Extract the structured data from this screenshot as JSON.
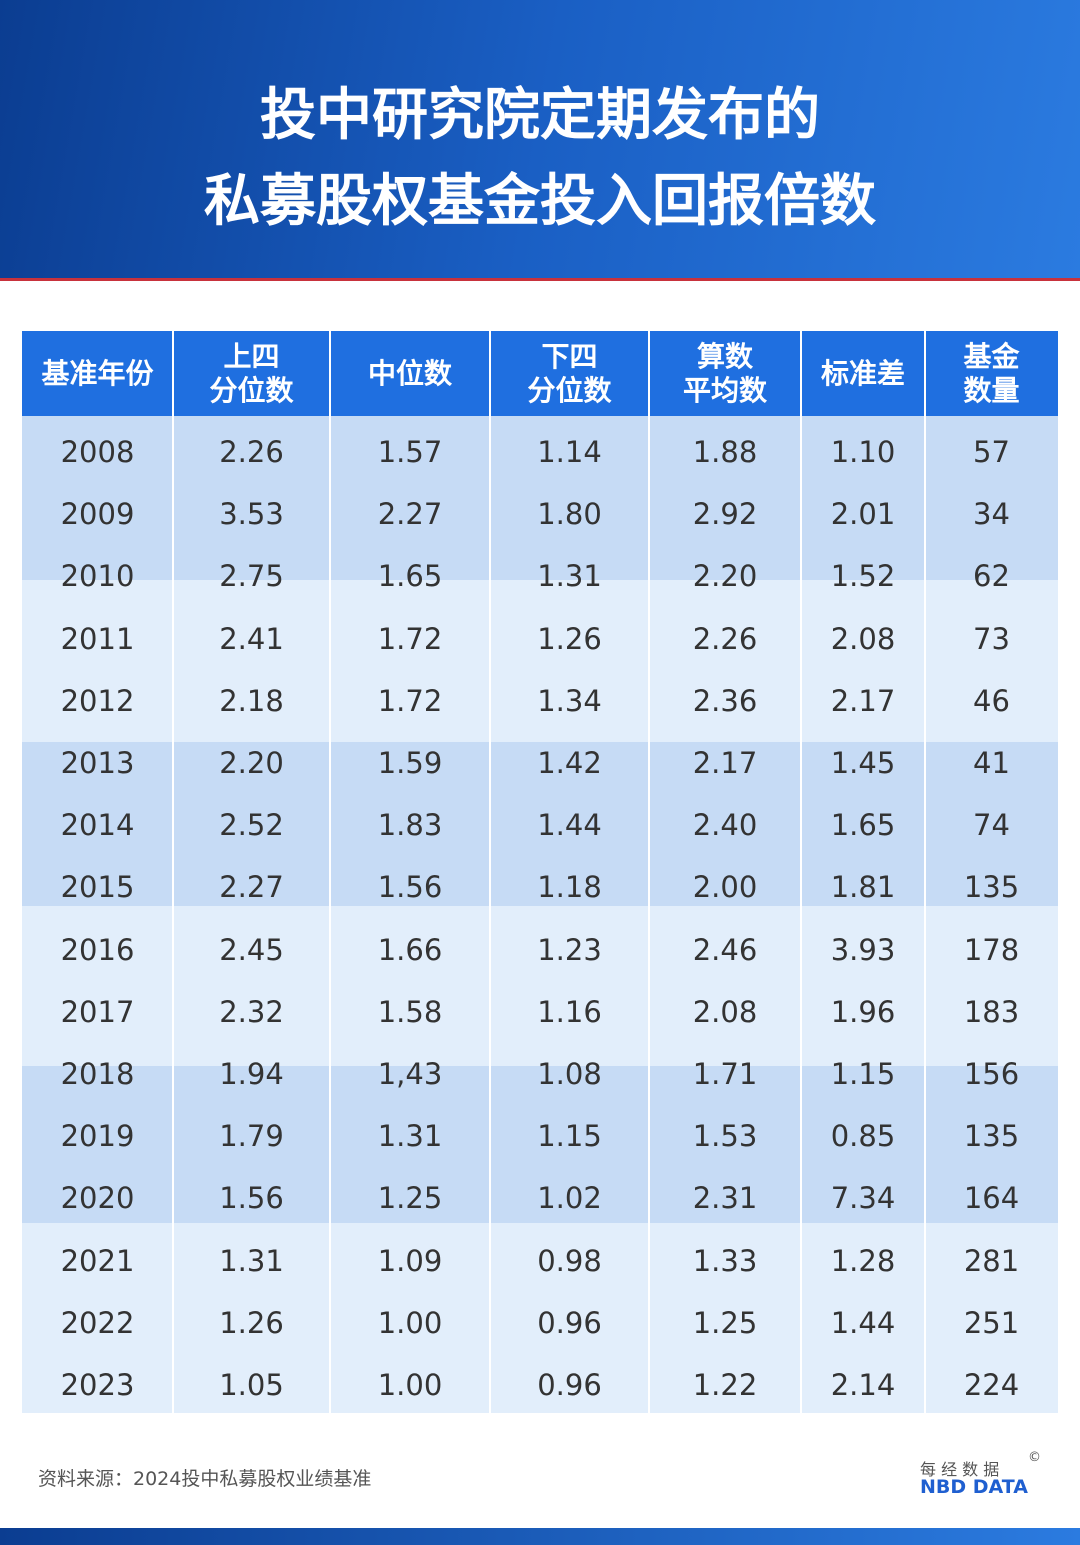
{
  "header": {
    "title_lines": [
      "投中研究院定期发布的",
      "私募股权基金投入回报倍数"
    ]
  },
  "table": {
    "columns": [
      [
        "基准年份"
      ],
      [
        "上四",
        "分位数"
      ],
      [
        "中位数"
      ],
      [
        "下四",
        "分位数"
      ],
      [
        "算数",
        "平均数"
      ],
      [
        "标准差"
      ],
      [
        "基金",
        "数量"
      ]
    ],
    "rows": [
      [
        "2008",
        "2.26",
        "1.57",
        "1.14",
        "1.88",
        "1.10",
        "57"
      ],
      [
        "2009",
        "3.53",
        "2.27",
        "1.80",
        "2.92",
        "2.01",
        "34"
      ],
      [
        "2010",
        "2.75",
        "1.65",
        "1.31",
        "2.20",
        "1.52",
        "62"
      ],
      [
        "2011",
        "2.41",
        "1.72",
        "1.26",
        "2.26",
        "2.08",
        "73"
      ],
      [
        "2012",
        "2.18",
        "1.72",
        "1.34",
        "2.36",
        "2.17",
        "46"
      ],
      [
        "2013",
        "2.20",
        "1.59",
        "1.42",
        "2.17",
        "1.45",
        "41"
      ],
      [
        "2014",
        "2.52",
        "1.83",
        "1.44",
        "2.40",
        "1.65",
        "74"
      ],
      [
        "2015",
        "2.27",
        "1.56",
        "1.18",
        "2.00",
        "1.81",
        "135"
      ],
      [
        "2016",
        "2.45",
        "1.66",
        "1.23",
        "2.46",
        "3.93",
        "178"
      ],
      [
        "2017",
        "2.32",
        "1.58",
        "1.16",
        "2.08",
        "1.96",
        "183"
      ],
      [
        "2018",
        "1.94",
        "1,43",
        "1.08",
        "1.71",
        "1.15",
        "156"
      ],
      [
        "2019",
        "1.79",
        "1.31",
        "1.15",
        "1.53",
        "0.85",
        "135"
      ],
      [
        "2020",
        "1.56",
        "1.25",
        "1.02",
        "2.31",
        "7.34",
        "164"
      ],
      [
        "2021",
        "1.31",
        "1.09",
        "0.98",
        "1.33",
        "1.28",
        "281"
      ],
      [
        "2022",
        "1.26",
        "1.00",
        "0.96",
        "1.25",
        "1.44",
        "251"
      ],
      [
        "2023",
        "1.05",
        "1.00",
        "0.96",
        "1.22",
        "2.14",
        "224"
      ]
    ]
  },
  "footer": {
    "source": "资料来源：2024投中私募股权业绩基准",
    "logo_cn": "每 经 数 据",
    "logo_en": "NBD DATA",
    "copyright": "©"
  }
}
